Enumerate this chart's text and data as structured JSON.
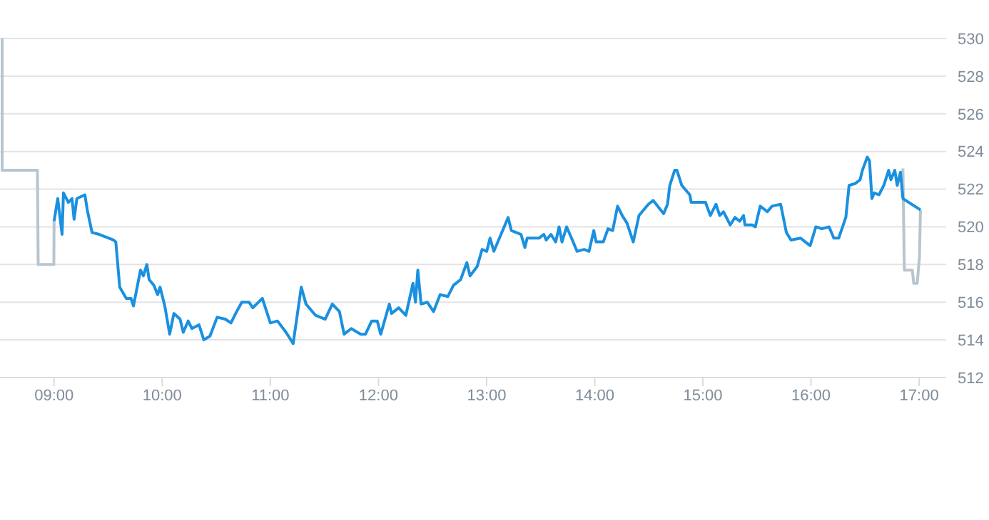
{
  "chart_data": {
    "type": "line",
    "xlim": [
      8.5,
      17.25
    ],
    "ylim": [
      512,
      530
    ],
    "yticks": [
      512,
      514,
      516,
      518,
      520,
      522,
      524,
      526,
      528,
      530
    ],
    "xticks": [
      {
        "value": 9,
        "label": "09:00"
      },
      {
        "value": 10,
        "label": "10:00"
      },
      {
        "value": 11,
        "label": "11:00"
      },
      {
        "value": 12,
        "label": "12:00"
      },
      {
        "value": 13,
        "label": "13:00"
      },
      {
        "value": 14,
        "label": "14:00"
      },
      {
        "value": 15,
        "label": "15:00"
      },
      {
        "value": 16,
        "label": "16:00"
      },
      {
        "value": 17,
        "label": "17:00"
      }
    ],
    "grid": "y",
    "marker": "none",
    "line_style": "solid",
    "series": [
      {
        "color": "#b8c5cf",
        "x": [
          8.52,
          8.52,
          8.846,
          8.853,
          8.998,
          9.0
        ],
        "values": [
          530,
          523,
          523,
          518,
          518,
          520.3
        ]
      },
      {
        "color": "#b8c5cf",
        "x": [
          16.85,
          16.863,
          16.937,
          16.95,
          16.982,
          17.003,
          17.012
        ],
        "values": [
          523.1,
          517.7,
          517.7,
          517.0,
          517.0,
          518.4,
          520.9
        ]
      },
      {
        "color": "#1a90e0",
        "x": [
          9.0,
          9.034,
          9.074,
          9.087,
          9.132,
          9.166,
          9.185,
          9.211,
          9.285,
          9.307,
          9.351,
          9.417,
          9.549,
          9.571,
          9.607,
          9.668,
          9.712,
          9.734,
          9.799,
          9.826,
          9.858,
          9.879,
          9.923,
          9.958,
          9.98,
          10.024,
          10.069,
          10.108,
          10.165,
          10.195,
          10.24,
          10.274,
          10.34,
          10.385,
          10.442,
          10.508,
          10.583,
          10.636,
          10.679,
          10.736,
          10.802,
          10.838,
          10.926,
          11.0,
          11.066,
          11.145,
          11.211,
          11.286,
          11.33,
          11.418,
          11.507,
          11.573,
          11.639,
          11.682,
          11.748,
          11.836,
          11.88,
          11.937,
          11.989,
          12.021,
          12.1,
          12.121,
          12.187,
          12.253,
          12.319,
          12.342,
          12.364,
          12.394,
          12.451,
          12.509,
          12.57,
          12.641,
          12.694,
          12.76,
          12.817,
          12.847,
          12.913,
          12.958,
          13.001,
          13.032,
          13.067,
          13.177,
          13.199,
          13.229,
          13.318,
          13.354,
          13.375,
          13.485,
          13.529,
          13.551,
          13.595,
          13.639,
          13.67,
          13.697,
          13.74,
          13.793,
          13.836,
          13.902,
          13.947,
          13.991,
          14.013,
          14.079,
          14.123,
          14.166,
          14.211,
          14.254,
          14.298,
          14.356,
          14.409,
          14.496,
          14.541,
          14.637,
          14.673,
          14.694,
          14.739,
          14.76,
          14.805,
          14.879,
          14.892,
          15.024,
          15.069,
          15.121,
          15.156,
          15.191,
          15.253,
          15.297,
          15.34,
          15.376,
          15.389,
          15.455,
          15.485,
          15.53,
          15.596,
          15.64,
          15.719,
          15.772,
          15.815,
          15.904,
          15.947,
          15.992,
          16.045,
          16.101,
          16.167,
          16.211,
          16.256,
          16.322,
          16.352,
          16.409,
          16.454,
          16.475,
          16.52,
          16.541,
          16.563,
          16.585,
          16.628,
          16.673,
          16.718,
          16.739,
          16.775,
          16.797,
          16.827,
          16.85,
          17.012
        ],
        "values": [
          520.3,
          521.5,
          519.6,
          521.8,
          521.3,
          521.5,
          520.4,
          521.5,
          521.7,
          520.9,
          519.7,
          519.6,
          519.3,
          519.2,
          516.8,
          516.2,
          516.2,
          515.8,
          517.7,
          517.4,
          518.0,
          517.2,
          516.9,
          516.4,
          516.8,
          515.8,
          514.3,
          515.4,
          515.1,
          514.4,
          515.0,
          514.6,
          514.8,
          514.0,
          514.2,
          515.2,
          515.1,
          514.9,
          515.4,
          516.0,
          516.0,
          515.7,
          516.2,
          514.9,
          515.0,
          514.4,
          513.8,
          516.8,
          515.9,
          515.3,
          515.1,
          515.9,
          515.5,
          514.3,
          514.6,
          514.3,
          514.3,
          515.0,
          515.0,
          514.3,
          515.9,
          515.4,
          515.7,
          515.3,
          517.0,
          516.0,
          517.7,
          515.9,
          516.0,
          515.5,
          516.4,
          516.3,
          516.9,
          517.2,
          518.1,
          517.4,
          517.9,
          518.8,
          518.7,
          519.4,
          518.7,
          520.2,
          520.5,
          519.8,
          519.6,
          518.9,
          519.4,
          519.4,
          519.6,
          519.3,
          519.6,
          519.2,
          520.0,
          519.2,
          520.0,
          519.3,
          518.7,
          518.8,
          518.7,
          519.8,
          519.2,
          519.2,
          519.9,
          519.8,
          521.1,
          520.6,
          520.2,
          519.2,
          520.6,
          521.2,
          521.4,
          520.7,
          521.2,
          522.2,
          523.0,
          523.0,
          522.2,
          521.7,
          521.3,
          521.3,
          520.6,
          521.2,
          520.6,
          520.8,
          520.1,
          520.5,
          520.3,
          520.6,
          520.1,
          520.1,
          520.0,
          521.1,
          520.8,
          521.1,
          521.2,
          519.7,
          519.3,
          519.4,
          519.2,
          519.0,
          520.0,
          519.9,
          520.0,
          519.4,
          519.4,
          520.5,
          522.2,
          522.3,
          522.5,
          523.0,
          523.7,
          523.5,
          521.5,
          521.8,
          521.7,
          522.2,
          523.0,
          522.5,
          523.0,
          522.2,
          522.9,
          521.5,
          520.9
        ]
      }
    ]
  }
}
